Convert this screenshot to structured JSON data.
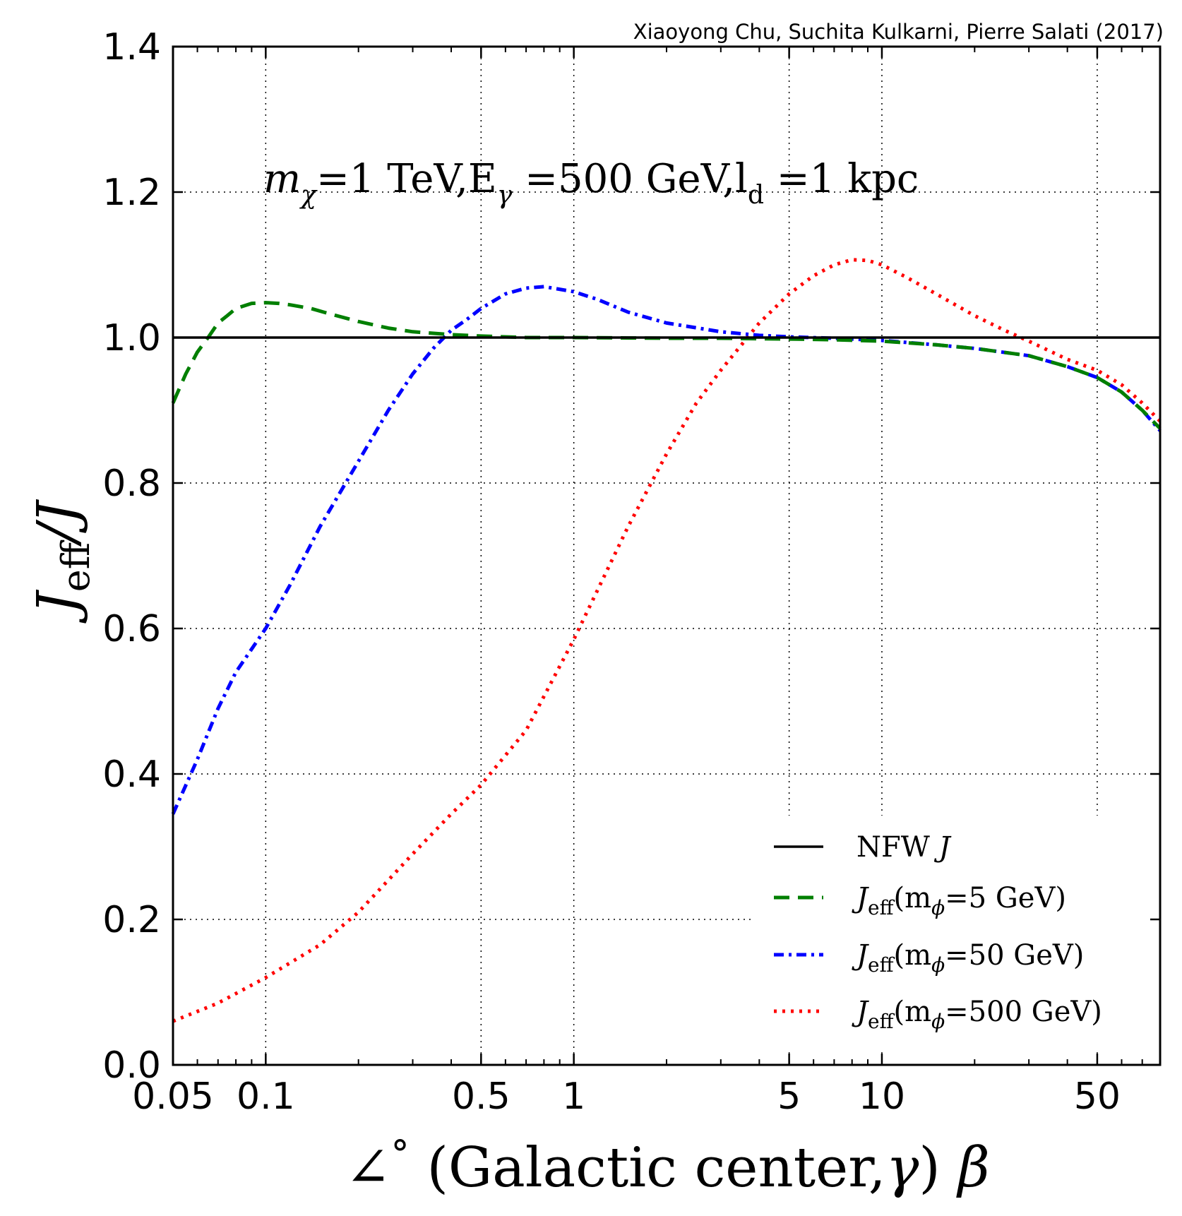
{
  "credit": "Xiaoyong Chu, Suchita Kulkarni, Pierre Salati (2017)",
  "chart_data": {
    "type": "line",
    "title": "",
    "annotation": {
      "mass_symbol": "m",
      "mass_sub": "χ",
      "mass_value": "=1 TeV,E",
      "energy_sub": "γ",
      "energy_value": " =500 GeV,l",
      "length_sub": "d",
      "length_value": " =1 kpc"
    },
    "xlabel": {
      "angle_symbol": "∠",
      "degree": "°",
      "text": " (Galactic center,",
      "gamma": "γ",
      "close": ")",
      "beta": "β"
    },
    "ylabel": {
      "main": "J",
      "sub": "eff",
      "rest": "/J"
    },
    "xscale": "log",
    "xlim": [
      0.05,
      80
    ],
    "ylim": [
      0.0,
      1.4
    ],
    "grid": true,
    "xticks": [
      {
        "value": 0.05,
        "label": "0.05"
      },
      {
        "value": 0.1,
        "label": "0.1"
      },
      {
        "value": 0.5,
        "label": "0.5"
      },
      {
        "value": 1,
        "label": "1"
      },
      {
        "value": 5,
        "label": "5"
      },
      {
        "value": 10,
        "label": "10"
      },
      {
        "value": 50,
        "label": "50"
      }
    ],
    "yticks": [
      {
        "value": 0.0,
        "label": "0.0"
      },
      {
        "value": 0.2,
        "label": "0.2"
      },
      {
        "value": 0.4,
        "label": "0.4"
      },
      {
        "value": 0.6,
        "label": "0.6"
      },
      {
        "value": 0.8,
        "label": "0.8"
      },
      {
        "value": 1.0,
        "label": "1.0"
      },
      {
        "value": 1.2,
        "label": "1.2"
      },
      {
        "value": 1.4,
        "label": "1.4"
      }
    ],
    "legend_position": "lower-right",
    "series": [
      {
        "name": "NFW J",
        "legend_main": "NFW ",
        "legend_italic": "J",
        "color": "#000000",
        "style": "solid",
        "x": [
          0.05,
          80
        ],
        "y": [
          1.0,
          1.0
        ]
      },
      {
        "name": "J_eff(m_phi=5 GeV)",
        "legend_J": "J",
        "legend_sub": "eff",
        "legend_m": "(m",
        "legend_phi": "ϕ",
        "legend_value": "=5 GeV)",
        "color": "#007f00",
        "style": "dashed",
        "x": [
          0.05,
          0.055,
          0.06,
          0.065,
          0.07,
          0.075,
          0.08,
          0.09,
          0.1,
          0.11,
          0.12,
          0.14,
          0.16,
          0.2,
          0.25,
          0.3,
          0.4,
          0.5,
          0.7,
          1,
          2,
          3,
          5,
          7,
          10,
          15,
          20,
          30,
          40,
          50,
          60,
          70,
          80
        ],
        "y": [
          0.91,
          0.95,
          0.98,
          1.0,
          1.02,
          1.03,
          1.04,
          1.047,
          1.048,
          1.047,
          1.045,
          1.04,
          1.033,
          1.022,
          1.013,
          1.008,
          1.004,
          1.002,
          1.0,
          1.0,
          0.999,
          0.999,
          0.998,
          0.997,
          0.995,
          0.99,
          0.985,
          0.975,
          0.96,
          0.945,
          0.925,
          0.9,
          0.875
        ]
      },
      {
        "name": "J_eff(m_phi=50 GeV)",
        "legend_J": "J",
        "legend_sub": "eff",
        "legend_m": "(m",
        "legend_phi": "ϕ",
        "legend_value": "=50 GeV)",
        "color": "#0000ff",
        "style": "dashdot",
        "x": [
          0.05,
          0.06,
          0.07,
          0.08,
          0.1,
          0.12,
          0.15,
          0.2,
          0.25,
          0.3,
          0.35,
          0.4,
          0.45,
          0.5,
          0.6,
          0.7,
          0.8,
          1,
          1.2,
          1.5,
          2,
          3,
          4,
          5,
          7,
          10,
          15,
          20,
          30,
          40,
          50,
          60,
          70,
          80
        ],
        "y": [
          0.345,
          0.42,
          0.49,
          0.54,
          0.6,
          0.66,
          0.74,
          0.83,
          0.9,
          0.95,
          0.985,
          1.01,
          1.025,
          1.04,
          1.06,
          1.068,
          1.07,
          1.063,
          1.052,
          1.035,
          1.02,
          1.008,
          1.003,
          1.001,
          0.999,
          0.996,
          0.99,
          0.985,
          0.975,
          0.96,
          0.945,
          0.925,
          0.9,
          0.872
        ]
      },
      {
        "name": "J_eff(m_phi=500 GeV)",
        "legend_J": "J",
        "legend_sub": "eff",
        "legend_m": "(m",
        "legend_phi": "ϕ",
        "legend_value": "=500 GeV)",
        "color": "#ff0000",
        "style": "dotted",
        "x": [
          0.05,
          0.07,
          0.1,
          0.15,
          0.2,
          0.3,
          0.4,
          0.5,
          0.7,
          1,
          1.5,
          2,
          2.5,
          3,
          4,
          5,
          6,
          7,
          8,
          9,
          10,
          12,
          15,
          20,
          25,
          30,
          40,
          50,
          60,
          70,
          80
        ],
        "y": [
          0.06,
          0.085,
          0.12,
          0.165,
          0.21,
          0.29,
          0.345,
          0.385,
          0.46,
          0.585,
          0.74,
          0.84,
          0.91,
          0.955,
          1.02,
          1.06,
          1.085,
          1.1,
          1.107,
          1.106,
          1.1,
          1.083,
          1.06,
          1.03,
          1.01,
          0.995,
          0.97,
          0.955,
          0.935,
          0.91,
          0.885
        ]
      }
    ]
  }
}
